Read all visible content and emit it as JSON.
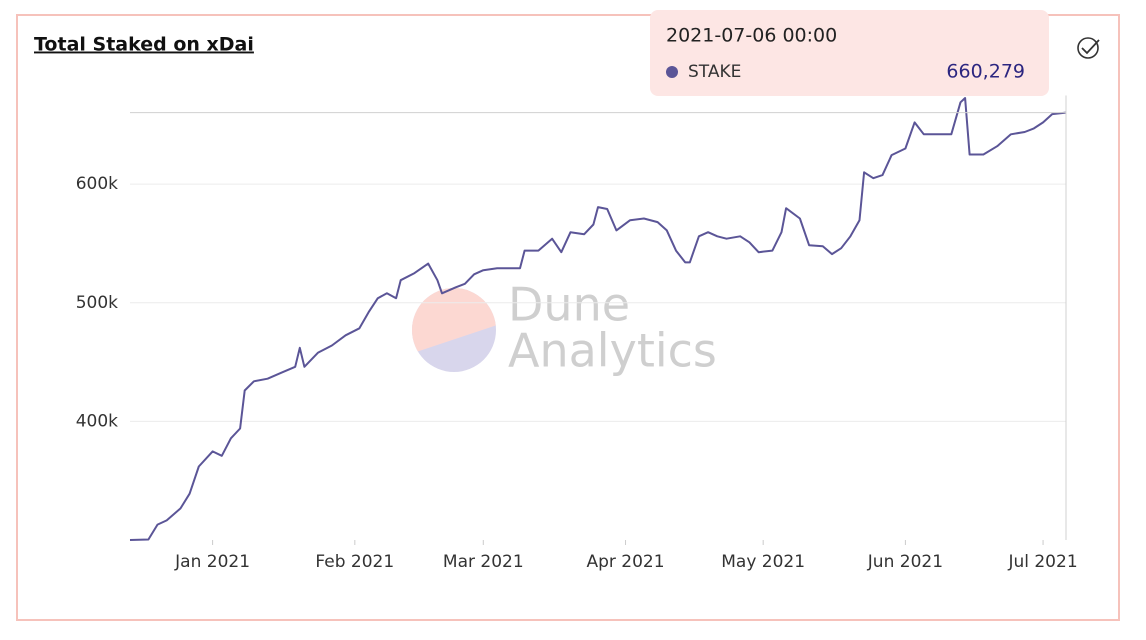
{
  "chart_data": {
    "type": "line",
    "title": "Total Staked on xDai",
    "x": [
      "2020-12-14",
      "2020-12-18",
      "2020-12-20",
      "2020-12-22",
      "2020-12-25",
      "2020-12-27",
      "2020-12-29",
      "2021-01-01",
      "2021-01-03",
      "2021-01-05",
      "2021-01-07",
      "2021-01-08",
      "2021-01-10",
      "2021-01-13",
      "2021-01-16",
      "2021-01-19",
      "2021-01-20",
      "2021-01-21",
      "2021-01-24",
      "2021-01-27",
      "2021-01-30",
      "2021-02-02",
      "2021-02-04",
      "2021-02-06",
      "2021-02-08",
      "2021-02-10",
      "2021-02-11",
      "2021-02-14",
      "2021-02-17",
      "2021-02-19",
      "2021-02-20",
      "2021-02-23",
      "2021-02-25",
      "2021-02-27",
      "2021-03-01",
      "2021-03-04",
      "2021-03-07",
      "2021-03-09",
      "2021-03-10",
      "2021-03-13",
      "2021-03-16",
      "2021-03-18",
      "2021-03-20",
      "2021-03-23",
      "2021-03-25",
      "2021-03-26",
      "2021-03-28",
      "2021-03-30",
      "2021-04-02",
      "2021-04-05",
      "2021-04-08",
      "2021-04-10",
      "2021-04-12",
      "2021-04-14",
      "2021-04-15",
      "2021-04-17",
      "2021-04-19",
      "2021-04-21",
      "2021-04-23",
      "2021-04-26",
      "2021-04-28",
      "2021-04-30",
      "2021-05-03",
      "2021-05-05",
      "2021-05-06",
      "2021-05-09",
      "2021-05-11",
      "2021-05-14",
      "2021-05-16",
      "2021-05-18",
      "2021-05-20",
      "2021-05-22",
      "2021-05-23",
      "2021-05-25",
      "2021-05-27",
      "2021-05-29",
      "2021-06-01",
      "2021-06-03",
      "2021-06-05",
      "2021-06-08",
      "2021-06-11",
      "2021-06-13",
      "2021-06-14",
      "2021-06-15",
      "2021-06-18",
      "2021-06-21",
      "2021-06-24",
      "2021-06-27",
      "2021-06-29",
      "2021-07-01",
      "2021-07-03",
      "2021-07-06"
    ],
    "series": [
      {
        "name": "STAKE",
        "color": "#5b5597",
        "values": [
          300000,
          300400,
          313000,
          316500,
          326600,
          339000,
          362000,
          374700,
          371000,
          385700,
          394000,
          426000,
          433800,
          436000,
          441000,
          446000,
          462000,
          446000,
          458000,
          464000,
          472600,
          478500,
          492000,
          503800,
          508000,
          503800,
          519000,
          525000,
          533000,
          519000,
          508000,
          513000,
          516000,
          524000,
          527400,
          529000,
          529000,
          529000,
          544000,
          544000,
          554000,
          542600,
          559500,
          557800,
          566000,
          580600,
          579000,
          561000,
          569600,
          571000,
          568000,
          561000,
          544000,
          534000,
          534000,
          556000,
          559500,
          556000,
          554000,
          556000,
          551000,
          542600,
          544000,
          559500,
          579700,
          571000,
          548500,
          547700,
          541000,
          546000,
          556000,
          569600,
          610000,
          605000,
          607600,
          624500,
          630000,
          652000,
          642000,
          642000,
          642000,
          669000,
          672600,
          625000,
          625000,
          632000,
          642000,
          643900,
          647000,
          652000,
          659000,
          660279
        ]
      }
    ],
    "xlim": [
      "2020-12-14",
      "2021-07-06"
    ],
    "xticks": [
      {
        "value": "2021-01-01",
        "label": "Jan 2021"
      },
      {
        "value": "2021-02-01",
        "label": "Feb 2021"
      },
      {
        "value": "2021-03-01",
        "label": "Mar 2021"
      },
      {
        "value": "2021-04-01",
        "label": "Apr 2021"
      },
      {
        "value": "2021-05-01",
        "label": "May 2021"
      },
      {
        "value": "2021-06-01",
        "label": "Jun 2021"
      },
      {
        "value": "2021-07-01",
        "label": "Jul 2021"
      }
    ],
    "ylim": [
      300000,
      700000
    ],
    "yticks": [
      {
        "value": 400000,
        "label": "400k"
      },
      {
        "value": 500000,
        "label": "500k"
      },
      {
        "value": 600000,
        "label": "600k"
      }
    ],
    "grid": true,
    "tooltip": {
      "x": "2021-07-06 00:00",
      "series": "STAKE",
      "value": 660279,
      "value_label": "660,279"
    },
    "watermark": [
      "Dune",
      "Analytics"
    ]
  }
}
